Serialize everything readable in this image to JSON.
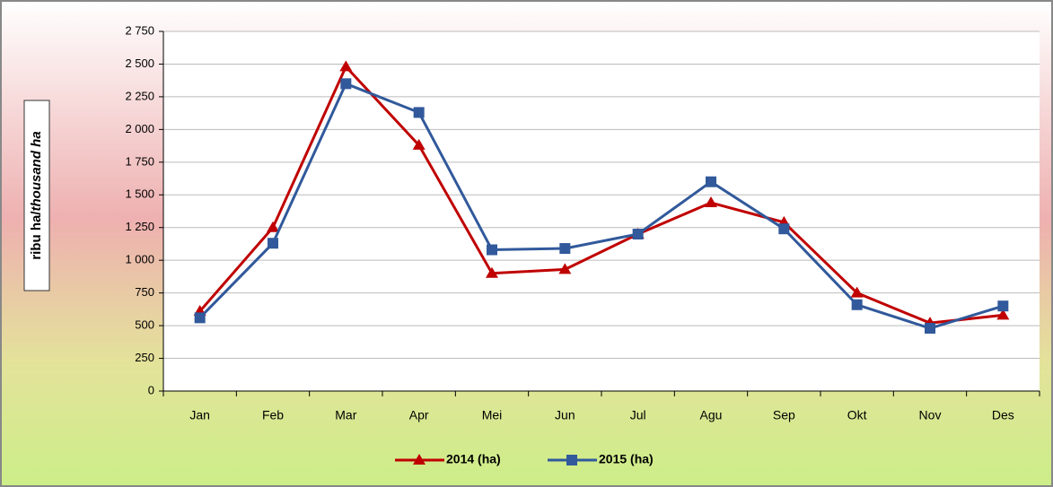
{
  "chart_data": {
    "type": "line",
    "y_label": [
      "ribu ha/",
      "thousand ha"
    ],
    "categories": [
      "Jan",
      "Feb",
      "Mar",
      "Apr",
      "Mei",
      "Jun",
      "Jul",
      "Agu",
      "Sep",
      "Okt",
      "Nov",
      "Des"
    ],
    "series": [
      {
        "name": "2014 (ha)",
        "color": "#c00000",
        "marker": "triangle",
        "values": [
          610,
          1250,
          2480,
          1880,
          900,
          930,
          1200,
          1440,
          1290,
          750,
          520,
          580
        ]
      },
      {
        "name": "2015 (ha)",
        "color": "#31599b",
        "marker": "square",
        "values": [
          560,
          1130,
          2350,
          2130,
          1080,
          1090,
          1200,
          1600,
          1240,
          660,
          480,
          650
        ]
      }
    ],
    "ylim": [
      0,
      2750
    ],
    "yticks": [
      0,
      250,
      500,
      750,
      {
        "value": 1000,
        "label": "1 000"
      },
      {
        "value": 1250,
        "label": "1 250"
      },
      {
        "value": 1500,
        "label": "1 500"
      },
      {
        "value": 1750,
        "label": "1 750"
      },
      {
        "value": 2000,
        "label": "2 000"
      },
      {
        "value": 2250,
        "label": "2 250"
      },
      {
        "value": 2500,
        "label": "2 500"
      },
      {
        "value": 2750,
        "label": "2 750"
      }
    ],
    "grid": true,
    "legend": "bottom"
  }
}
